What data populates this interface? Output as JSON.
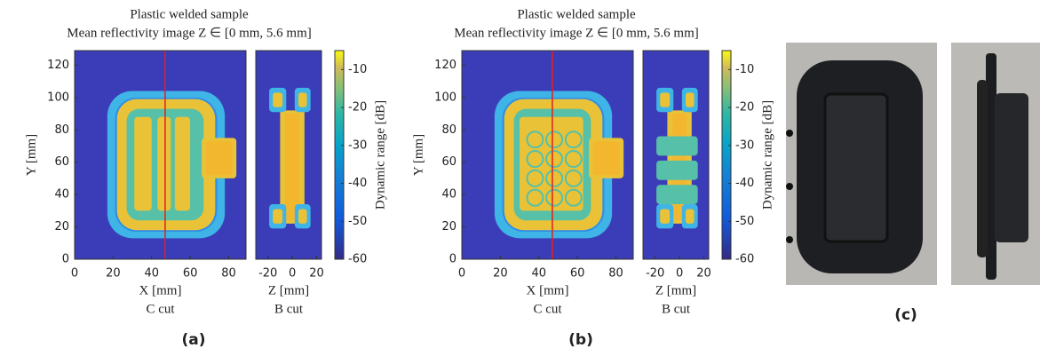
{
  "panels": [
    {
      "title": [
        "Plastic welded sample",
        "Mean reflectivity image Z ∈ [0 mm, 5.6 mm]"
      ],
      "c_cut": {
        "xlabel": "X [mm]",
        "ylabel": "Y [mm]",
        "caption": "C cut",
        "xlim": [
          0,
          89
        ],
        "ylim": [
          0,
          129
        ],
        "xticks": [
          0,
          20,
          40,
          60,
          80
        ],
        "yticks": [
          0,
          20,
          40,
          60,
          80,
          100,
          120
        ],
        "cut_x": 47
      },
      "b_cut": {
        "xlabel": "Z [mm]",
        "caption": "B cut",
        "xlim": [
          -30,
          24
        ],
        "xticks": [
          -20,
          0,
          20
        ]
      },
      "colorbar": {
        "label": "Dynamic range [dB]",
        "lim": [
          -60,
          -5
        ],
        "ticks": [
          -10,
          -20,
          -30,
          -40,
          -50,
          -60
        ]
      },
      "label": "(a)"
    },
    {
      "title": [
        "Plastic welded sample",
        "Mean reflectivity image Z ∈ [0 mm, 5.6 mm]"
      ],
      "c_cut": {
        "xlabel": "X [mm]",
        "ylabel": "Y [mm]",
        "caption": "C cut",
        "xlim": [
          0,
          89
        ],
        "ylim": [
          0,
          129
        ],
        "xticks": [
          0,
          20,
          40,
          60,
          80
        ],
        "yticks": [
          0,
          20,
          40,
          60,
          80,
          100,
          120
        ],
        "cut_x": 47
      },
      "b_cut": {
        "xlabel": "Z [mm]",
        "caption": "B cut",
        "xlim": [
          -30,
          24
        ],
        "xticks": [
          -20,
          0,
          20
        ]
      },
      "colorbar": {
        "label": "Dynamic range [dB]",
        "lim": [
          -60,
          -5
        ],
        "ticks": [
          -10,
          -20,
          -30,
          -40,
          -50,
          -60
        ]
      },
      "label": "(b)"
    }
  ],
  "photo_label": "(c)"
}
